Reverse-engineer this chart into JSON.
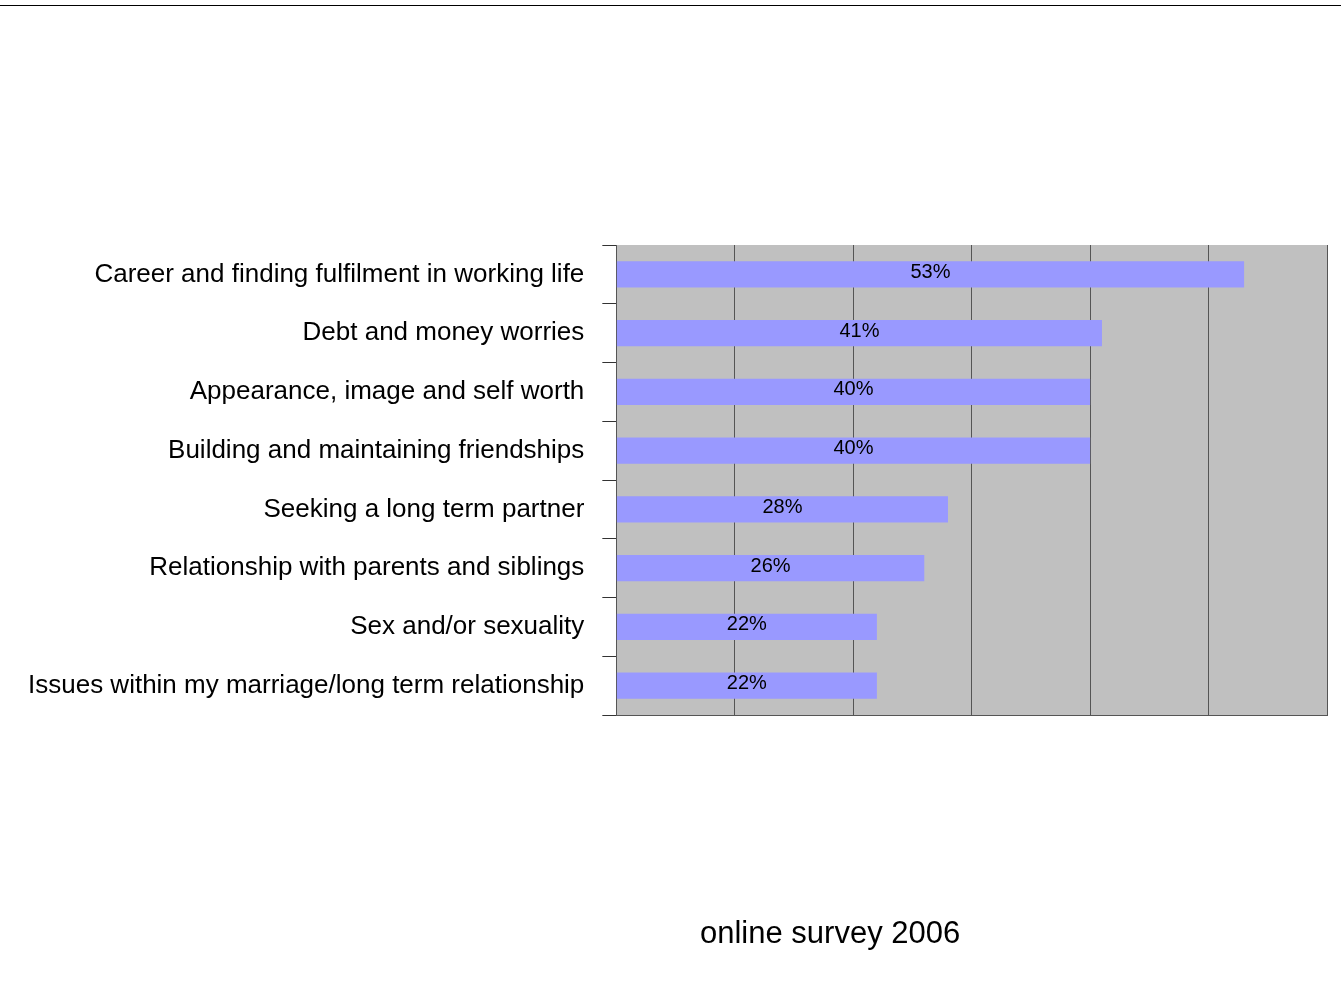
{
  "chart_data": {
    "type": "bar",
    "orientation": "horizontal",
    "categories": [
      "Career and finding fulfilment in working life",
      "Debt and money worries",
      "Appearance, image and self worth",
      "Building and maintaining friendships",
      "Seeking a long term partner",
      "Relationship with parents and siblings",
      "Sex and/or sexuality",
      "Issues within my marriage/long term relationship"
    ],
    "values": [
      53,
      41,
      40,
      40,
      28,
      26,
      22,
      22
    ],
    "value_labels": [
      "53%",
      "41%",
      "40%",
      "40%",
      "28%",
      "26%",
      "22%",
      "22%"
    ],
    "color": "#9999ff",
    "xlim": [
      0,
      60
    ],
    "xticks": [
      {
        "value": 0,
        "label": null
      },
      {
        "value": 10,
        "label": null
      },
      {
        "value": 20,
        "label": null
      },
      {
        "value": 30,
        "label": null
      },
      {
        "value": 40,
        "label": null
      },
      {
        "value": 50,
        "label": null
      },
      {
        "value": 60,
        "label": null
      }
    ],
    "grid": "x",
    "tick_labels": "y",
    "annotations": [
      "online survey 2006"
    ]
  }
}
